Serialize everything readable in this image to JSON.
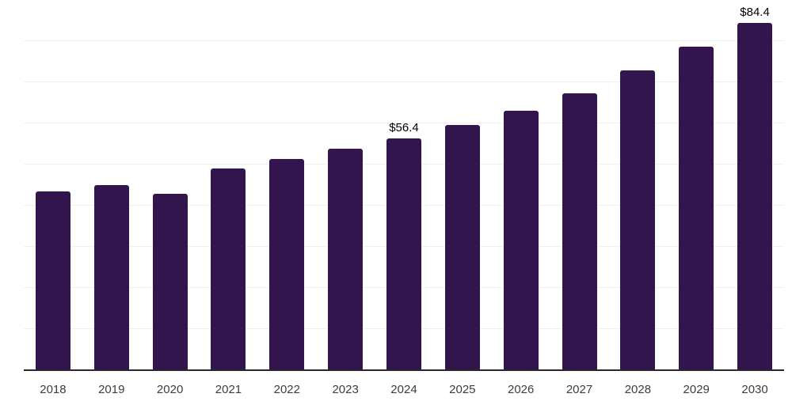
{
  "chart_data": {
    "type": "bar",
    "title": "",
    "xlabel": "",
    "ylabel": "",
    "categories": [
      "2018",
      "2019",
      "2020",
      "2021",
      "2022",
      "2023",
      "2024",
      "2025",
      "2026",
      "2027",
      "2028",
      "2029",
      "2030"
    ],
    "values": [
      43.4,
      45.0,
      42.9,
      49.0,
      51.4,
      53.8,
      56.4,
      59.6,
      63.0,
      67.4,
      72.9,
      78.6,
      84.4
    ],
    "bar_labels": [
      "",
      "",
      "",
      "",
      "",
      "",
      "$56.4",
      "",
      "",
      "",
      "",
      "",
      "$84.4"
    ],
    "ylim": [
      0,
      90
    ],
    "gridline_interval": 10,
    "grid": true,
    "legend": "none",
    "colors": {
      "bar": "#33154e",
      "axis": "#282828",
      "gridline": "#f0f0f0",
      "tick_label": "#3d3d3d",
      "data_label": "#000000",
      "background": "#ffffff"
    }
  }
}
